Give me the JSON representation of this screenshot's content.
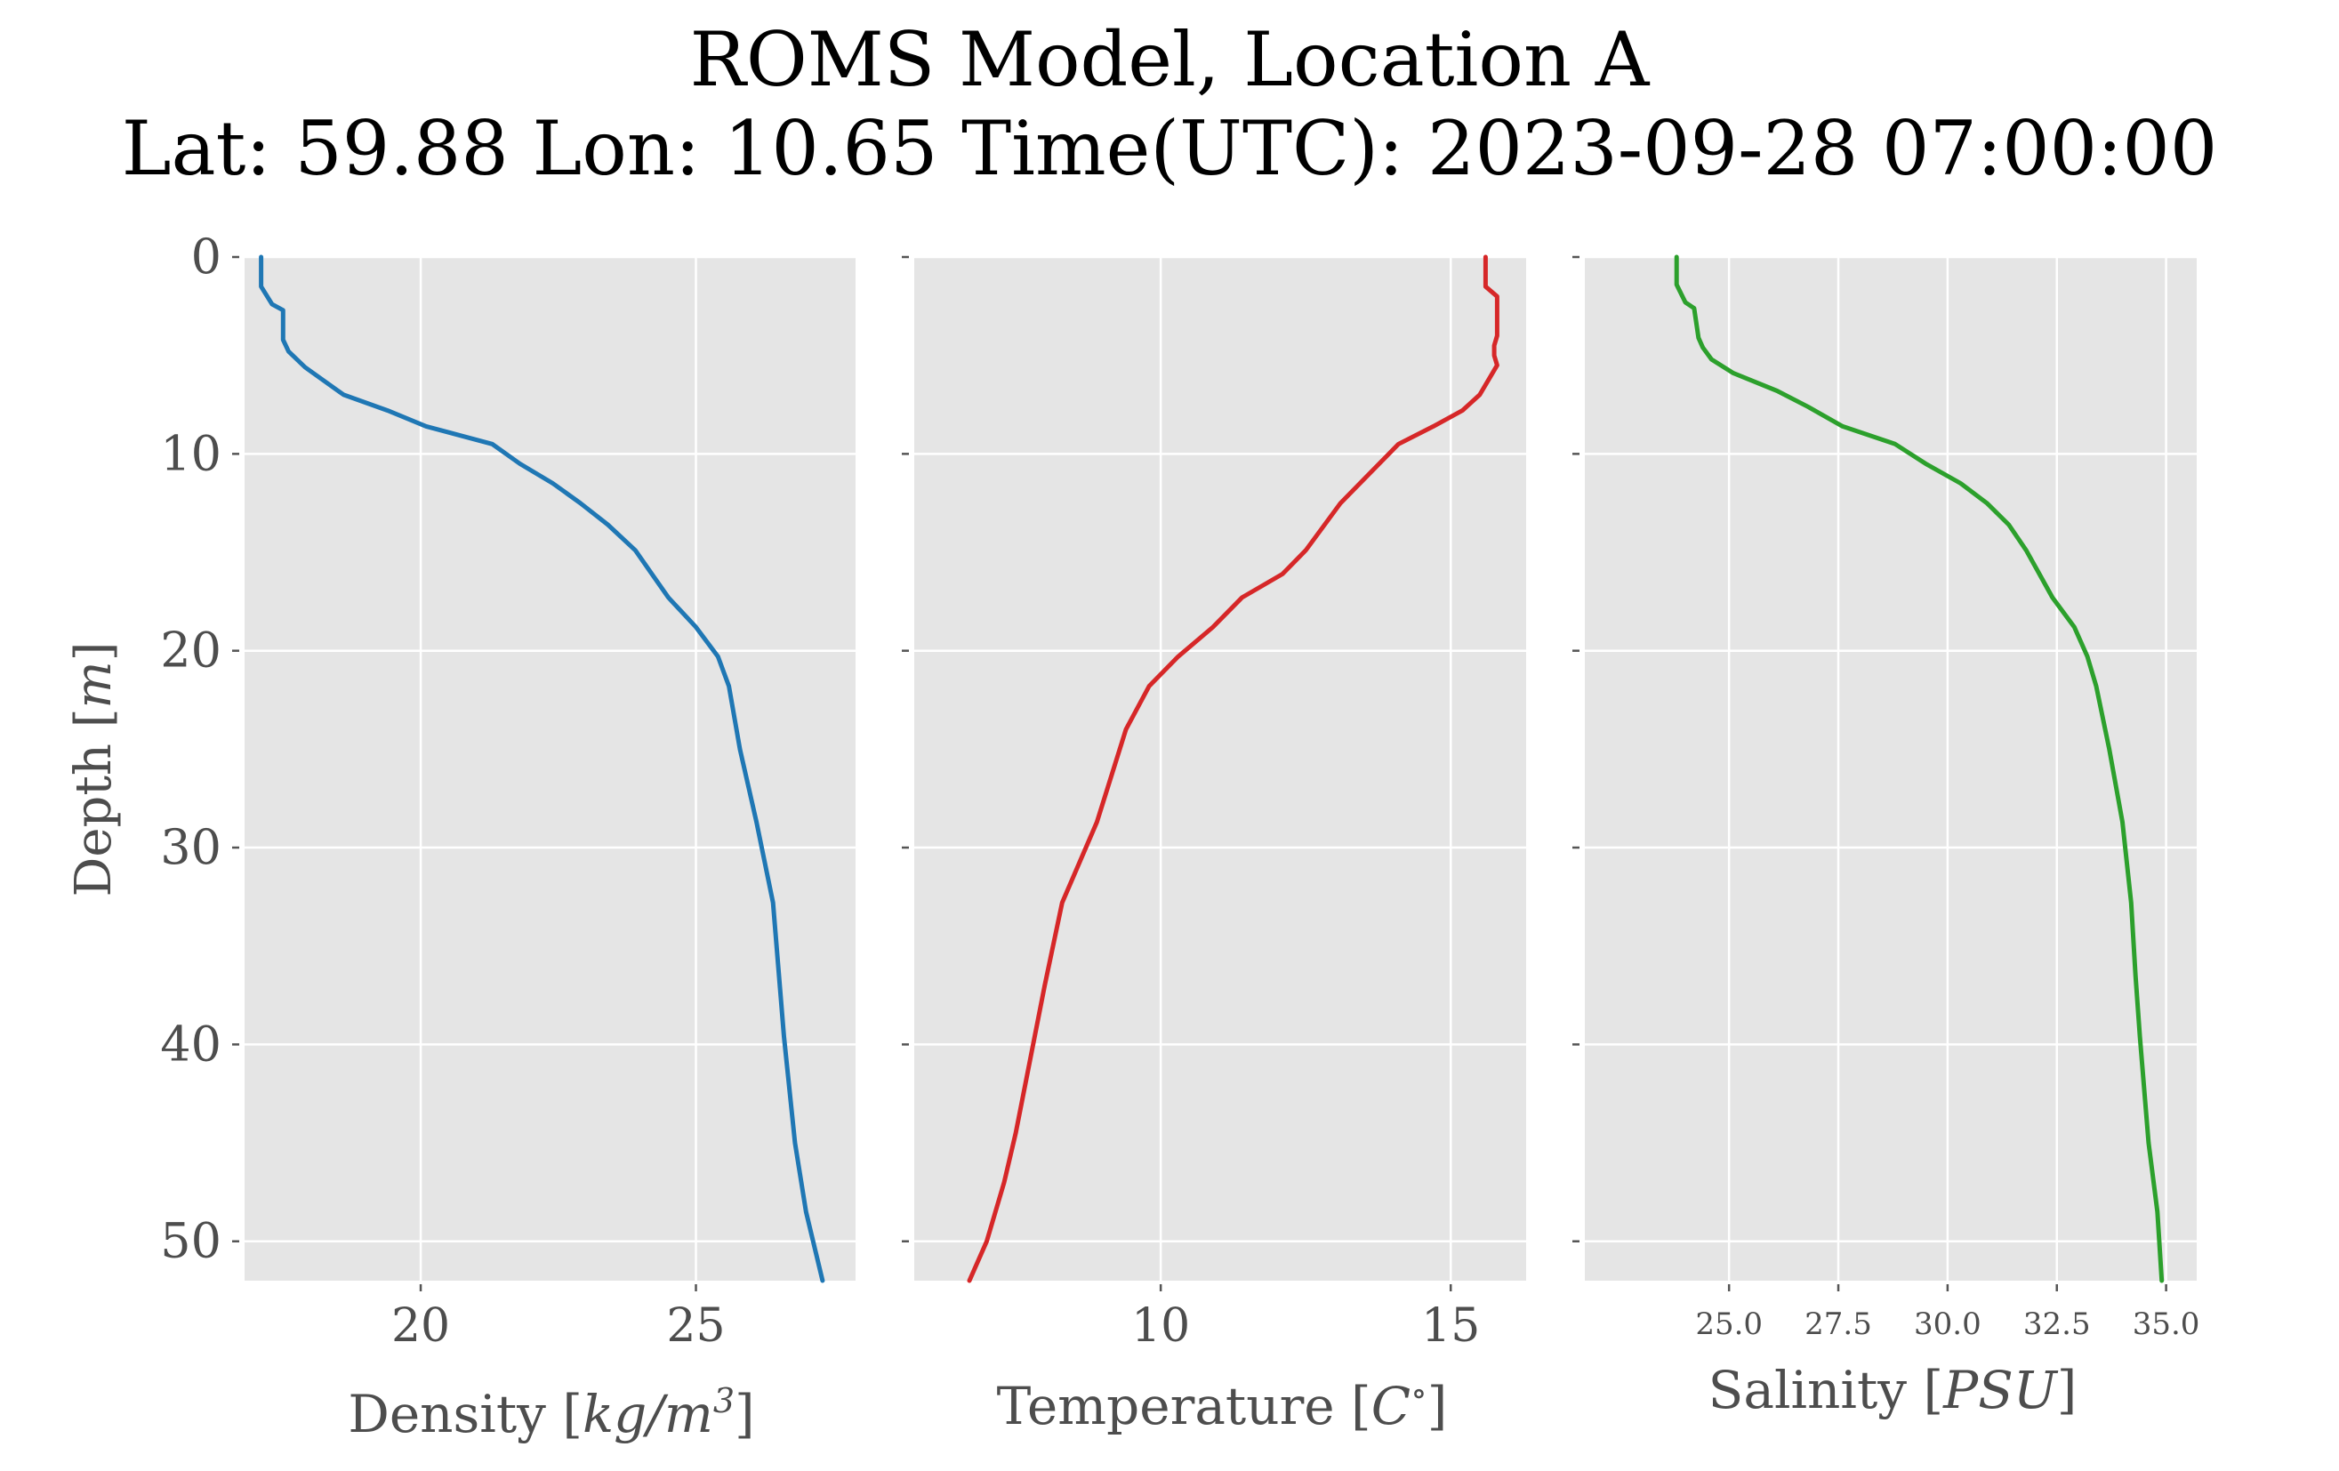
{
  "figure": {
    "title_line1": "ROMS Model, Location A",
    "title_line2": "Lat: 59.88 Lon: 10.65 Time(UTC): 2023-09-28 07:00:00"
  },
  "colors": {
    "panel_bg": "#e5e5e5",
    "grid": "#ffffff",
    "tick_text": "#4d4d4d",
    "density": "#1f77b4",
    "temperature": "#d62728",
    "salinity": "#2ca02c"
  },
  "chart_data": [
    {
      "type": "line",
      "name": "density-panel",
      "color": "#1f77b4",
      "xlabel_text": "Density [",
      "xlabel_math": "kg/m",
      "xlabel_sup": "3",
      "xlabel_end": "]",
      "ylabel_text": "Depth [",
      "ylabel_math": "m",
      "ylabel_end": "]",
      "xlim": [
        16.8,
        27.9
      ],
      "ylim": [
        52,
        0
      ],
      "xticks": [
        20,
        25
      ],
      "xtick_labels": [
        "20",
        "25"
      ],
      "yticks": [
        0,
        10,
        20,
        30,
        40,
        50
      ],
      "ytick_labels": [
        "0",
        "10",
        "20",
        "30",
        "40",
        "50"
      ],
      "grid": true,
      "x": [
        17.1,
        17.1,
        17.3,
        17.5,
        17.5,
        17.6,
        17.9,
        18.6,
        19.4,
        20.1,
        21.3,
        21.8,
        22.4,
        22.9,
        23.4,
        23.9,
        24.2,
        24.5,
        25.0,
        25.4,
        25.6,
        25.8,
        26.1,
        26.4,
        26.6,
        26.8,
        27.0,
        27.3
      ],
      "y": [
        0.0,
        1.5,
        2.4,
        2.7,
        4.2,
        4.8,
        5.6,
        7.0,
        7.8,
        8.6,
        9.5,
        10.5,
        11.5,
        12.5,
        13.6,
        14.9,
        16.1,
        17.3,
        18.8,
        20.3,
        21.8,
        25.0,
        28.7,
        32.8,
        39.6,
        45.0,
        48.5,
        52.0
      ]
    },
    {
      "type": "line",
      "name": "temperature-panel",
      "color": "#d62728",
      "xlabel_text": "Temperature [",
      "xlabel_math": "C",
      "xlabel_sup": "∘",
      "xlabel_end": "]",
      "xlim": [
        5.75,
        16.3
      ],
      "ylim": [
        52,
        0
      ],
      "xticks": [
        10,
        15
      ],
      "xtick_labels": [
        "10",
        "15"
      ],
      "yticks": [
        0,
        10,
        20,
        30,
        40,
        50
      ],
      "grid": true,
      "x": [
        15.6,
        15.6,
        15.8,
        15.8,
        15.75,
        15.75,
        15.8,
        15.5,
        15.2,
        14.7,
        14.1,
        13.6,
        13.1,
        12.5,
        12.1,
        11.4,
        10.9,
        10.3,
        9.8,
        9.4,
        8.9,
        8.3,
        8.0,
        7.5,
        7.3,
        7.0,
        6.7
      ],
      "y": [
        0.0,
        1.5,
        2.0,
        4.0,
        4.5,
        5.0,
        5.5,
        7.0,
        7.8,
        8.6,
        9.5,
        11.0,
        12.5,
        14.9,
        16.1,
        17.3,
        18.8,
        20.3,
        21.8,
        24.0,
        28.7,
        32.8,
        37.0,
        44.5,
        47.0,
        50.0,
        52.0
      ]
    },
    {
      "type": "line",
      "name": "salinity-panel",
      "color": "#2ca02c",
      "xlabel_text": "Salinity [",
      "xlabel_math": "PSU",
      "xlabel_end": "]",
      "xlim": [
        21.7,
        35.7
      ],
      "ylim": [
        52,
        0
      ],
      "xticks": [
        25.0,
        27.5,
        30.0,
        32.5,
        35.0
      ],
      "xtick_labels": [
        "25.0",
        "27.5",
        "30.0",
        "32.5",
        "35.0"
      ],
      "yticks": [
        0,
        10,
        20,
        30,
        40,
        50
      ],
      "grid": true,
      "x": [
        23.8,
        23.8,
        24.0,
        24.2,
        24.3,
        24.4,
        24.6,
        25.1,
        26.1,
        26.8,
        27.6,
        28.8,
        29.5,
        30.3,
        30.9,
        31.4,
        31.8,
        32.1,
        32.4,
        32.9,
        33.2,
        33.4,
        33.7,
        34.0,
        34.2,
        34.3,
        34.4,
        34.6,
        34.8,
        34.9
      ],
      "y": [
        0.0,
        1.4,
        2.3,
        2.6,
        4.1,
        4.6,
        5.2,
        5.9,
        6.8,
        7.6,
        8.6,
        9.5,
        10.5,
        11.5,
        12.5,
        13.6,
        14.9,
        16.1,
        17.3,
        18.8,
        20.3,
        21.8,
        25.0,
        28.7,
        32.8,
        36.5,
        39.6,
        45.0,
        48.5,
        52.0
      ]
    }
  ]
}
